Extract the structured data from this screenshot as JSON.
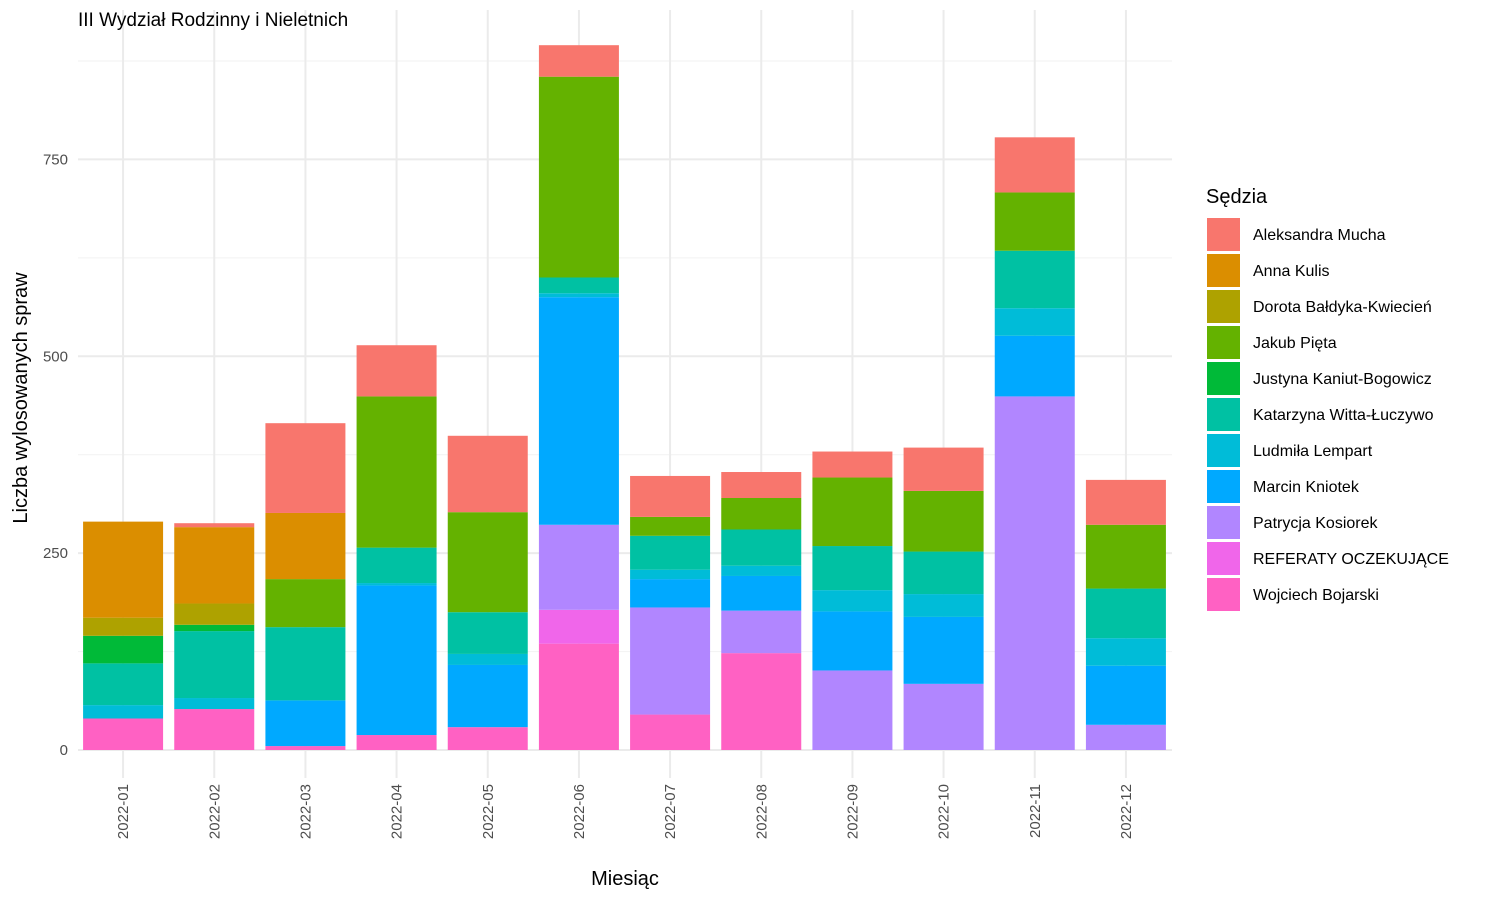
{
  "chart_data": {
    "type": "bar",
    "stacked": true,
    "title": "III Wydział Rodzinny i Nieletnich",
    "xlabel": "Miesiąc",
    "ylabel": "Liczba wylosowanych spraw",
    "ylim": [
      0,
      900
    ],
    "yticks": [
      0,
      250,
      500,
      750
    ],
    "grid": true,
    "legend": {
      "title": "Sędzia",
      "placement": "right"
    },
    "categories": [
      "2022-01",
      "2022-02",
      "2022-03",
      "2022-04",
      "2022-05",
      "2022-06",
      "2022-07",
      "2022-08",
      "2022-09",
      "2022-10",
      "2022-11",
      "2022-12"
    ],
    "series": [
      {
        "name": "Wojciech Bojarski",
        "color": "#FF61C3",
        "values": [
          40,
          52,
          5,
          19,
          29,
          135,
          45,
          123,
          0,
          0,
          0,
          0
        ]
      },
      {
        "name": "REFERATY OCZEKUJĄCE",
        "color": "#F066EA",
        "values": [
          0,
          0,
          0,
          0,
          0,
          43,
          0,
          0,
          0,
          0,
          0,
          0
        ]
      },
      {
        "name": "Patrycja Kosiorek",
        "color": "#B186FF",
        "values": [
          0,
          0,
          0,
          0,
          0,
          108,
          136,
          54,
          101,
          84,
          449,
          32
        ]
      },
      {
        "name": "Marcin Kniotek",
        "color": "#00A9FF",
        "values": [
          0,
          0,
          58,
          190,
          79,
          289,
          36,
          44,
          75,
          85,
          77,
          75
        ]
      },
      {
        "name": "Ludmiła Lempart",
        "color": "#00BCD8",
        "values": [
          17,
          14,
          0,
          3,
          14,
          5,
          12,
          13,
          27,
          29,
          35,
          35
        ]
      },
      {
        "name": "Katarzyna Witta-Łuczywo",
        "color": "#00C1A3",
        "values": [
          53,
          85,
          93,
          45,
          53,
          20,
          43,
          46,
          56,
          54,
          73,
          63
        ]
      },
      {
        "name": "Justyna Kaniut-Bogowicz",
        "color": "#00BA38",
        "values": [
          35,
          8,
          0,
          0,
          0,
          0,
          0,
          0,
          0,
          0,
          0,
          0
        ]
      },
      {
        "name": "Jakub Pięta",
        "color": "#64B200",
        "values": [
          0,
          0,
          61,
          192,
          127,
          255,
          24,
          40,
          87,
          77,
          74,
          81
        ]
      },
      {
        "name": "Dorota Bałdyka-Kwiecień",
        "color": "#AEA200",
        "values": [
          23,
          27,
          0,
          0,
          0,
          0,
          0,
          0,
          0,
          0,
          0,
          0
        ]
      },
      {
        "name": "Anna Kulis",
        "color": "#DB8E00",
        "values": [
          122,
          97,
          84,
          0,
          0,
          0,
          0,
          0,
          0,
          0,
          0,
          0
        ]
      },
      {
        "name": "Aleksandra Mucha",
        "color": "#F8766D",
        "values": [
          0,
          5,
          114,
          65,
          97,
          40,
          52,
          33,
          33,
          55,
          70,
          57
        ]
      }
    ]
  },
  "legend_order": [
    "Aleksandra Mucha",
    "Anna Kulis",
    "Dorota Bałdyka-Kwiecień",
    "Jakub Pięta",
    "Justyna Kaniut-Bogowicz",
    "Katarzyna Witta-Łuczywo",
    "Ludmiła Lempart",
    "Marcin Kniotek",
    "Patrycja Kosiorek",
    "REFERATY OCZEKUJĄCE",
    "Wojciech Bojarski"
  ]
}
